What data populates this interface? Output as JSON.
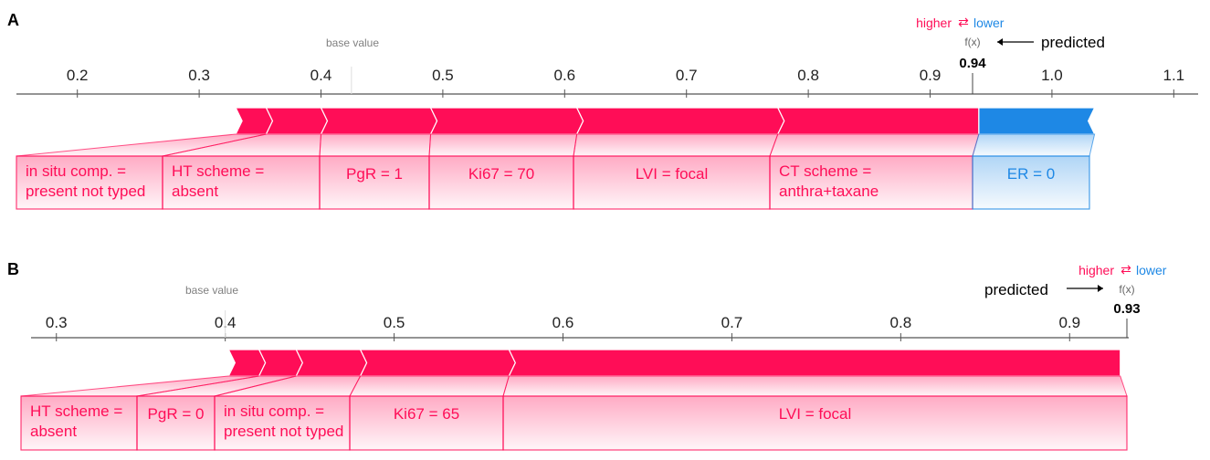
{
  "panels": [
    {
      "label": "A",
      "higher_label": "higher",
      "swap_glyph": "⇄",
      "lower_label": "lower",
      "fx_label": "f(x)",
      "fx_value": "0.94",
      "predicted_label": "predicted",
      "base_value_label": "base value"
    },
    {
      "label": "B",
      "higher_label": "higher",
      "swap_glyph": "⇄",
      "lower_label": "lower",
      "fx_label": "f(x)",
      "fx_value": "0.93",
      "predicted_label": "predicted",
      "base_value_label": "base value"
    }
  ],
  "colors": {
    "positive": "#ff0d57",
    "negative": "#1e88e5",
    "axis": "#555555",
    "base_value_text": "#808080"
  },
  "chart_data": [
    {
      "type": "bar",
      "subtype": "shap-force-plot",
      "xlim": [
        0.15,
        1.12
      ],
      "ticks": [
        0.2,
        0.3,
        0.4,
        0.5,
        0.6,
        0.7,
        0.8,
        0.9,
        1.0,
        1.1
      ],
      "tick_labels": [
        "0.2",
        "0.3",
        "0.4",
        "0.5",
        "0.6",
        "0.7",
        "0.8",
        "0.9",
        "1.0",
        "1.1"
      ],
      "base_value": 0.425,
      "fx": 0.94,
      "positive_features": [
        {
          "label": [
            "in situ comp. =",
            "present not typed"
          ],
          "start": 0.33,
          "end": 0.355
        },
        {
          "label": [
            "HT scheme =",
            "absent"
          ],
          "start": 0.355,
          "end": 0.4
        },
        {
          "label": [
            "PgR = 1"
          ],
          "start": 0.4,
          "end": 0.49
        },
        {
          "label": [
            "Ki67 = 70"
          ],
          "start": 0.49,
          "end": 0.61
        },
        {
          "label": [
            "LVI = focal"
          ],
          "start": 0.61,
          "end": 0.775
        },
        {
          "label": [
            "CT scheme =",
            "anthra+taxane"
          ],
          "start": 0.775,
          "end": 0.94
        }
      ],
      "negative_features": [
        {
          "label": [
            "ER = 0"
          ],
          "start": 0.94,
          "end": 1.035
        }
      ]
    },
    {
      "type": "bar",
      "subtype": "shap-force-plot",
      "xlim": [
        0.285,
        0.935
      ],
      "ticks": [
        0.3,
        0.4,
        0.5,
        0.6,
        0.7,
        0.8,
        0.9
      ],
      "tick_labels": [
        "0.3",
        "0.4",
        "0.5",
        "0.6",
        "0.7",
        "0.8",
        "0.9"
      ],
      "base_value": 0.4,
      "fx": 0.93,
      "positive_features": [
        {
          "label": [
            "HT scheme =",
            "absent"
          ],
          "start": 0.402,
          "end": 0.42
        },
        {
          "label": [
            "PgR = 0"
          ],
          "start": 0.42,
          "end": 0.442
        },
        {
          "label": [
            "in situ comp. =",
            "present not typed"
          ],
          "start": 0.442,
          "end": 0.48
        },
        {
          "label": [
            "Ki67 = 65"
          ],
          "start": 0.48,
          "end": 0.568
        },
        {
          "label": [
            "LVI = focal"
          ],
          "start": 0.568,
          "end": 0.93
        }
      ],
      "negative_features": []
    }
  ]
}
